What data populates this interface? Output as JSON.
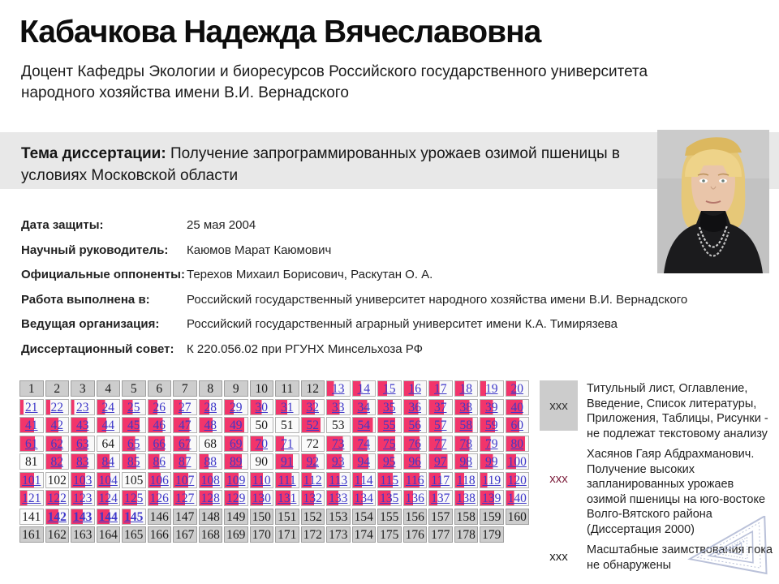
{
  "person": {
    "name": "Кабачкова Надежда Вячеславовна",
    "position": "Доцент Кафедры Экологии и биоресурсов Российского государственного университета народного хозяйства имени В.И. Вернадского"
  },
  "theme": {
    "label": "Тема диссертации:",
    "text": " Получение запрограммированных урожаев озимой пшеницы в условиях Московской области"
  },
  "meta": {
    "rows": [
      {
        "label": "Дата защиты:",
        "value": "25 мая 2004"
      },
      {
        "label": "Научный руководитель:",
        "value": "Каюмов Марат Каюмович"
      },
      {
        "label": "Официальные оппоненты:",
        "value": "Терехов Михаил Борисович, Раскутан О. А."
      },
      {
        "label": "Работа выполнена в:",
        "value": "Российский государственный университет народного хозяйства имени В.И. Вернадского"
      },
      {
        "label": "Ведущая организация:",
        "value": "Российский государственный аграрный университет имени К.А. Тимирязева"
      },
      {
        "label": "Диссертационный совет:",
        "value": "К 220.056.02 при РГУНХ Минсельхоза РФ"
      }
    ]
  },
  "colors": {
    "pink": "#f2356b",
    "gray_cell": "#cdcdcd",
    "link_blue": "#3d37c9",
    "theme_bg": "#e8e8e8"
  },
  "grid": {
    "cells": [
      {
        "n": 1,
        "t": "g"
      },
      {
        "n": 2,
        "t": "g"
      },
      {
        "n": 3,
        "t": "g"
      },
      {
        "n": 4,
        "t": "g"
      },
      {
        "n": 5,
        "t": "g"
      },
      {
        "n": 6,
        "t": "g"
      },
      {
        "n": 7,
        "t": "g"
      },
      {
        "n": 8,
        "t": "g"
      },
      {
        "n": 9,
        "t": "g"
      },
      {
        "n": 10,
        "t": "g"
      },
      {
        "n": 11,
        "t": "g"
      },
      {
        "n": 12,
        "t": "g"
      },
      {
        "n": 13,
        "t": "p",
        "f": 30
      },
      {
        "n": 14,
        "t": "p",
        "f": 35
      },
      {
        "n": 15,
        "t": "p",
        "f": 40
      },
      {
        "n": 16,
        "t": "p",
        "f": 45
      },
      {
        "n": 17,
        "t": "p",
        "f": 45
      },
      {
        "n": 18,
        "t": "p",
        "f": 40
      },
      {
        "n": 19,
        "t": "p",
        "f": 25
      },
      {
        "n": 20,
        "t": "p",
        "f": 45
      },
      {
        "n": 21,
        "t": "p",
        "f": 15
      },
      {
        "n": 22,
        "t": "p",
        "f": 18
      },
      {
        "n": 23,
        "t": "p",
        "f": 12
      },
      {
        "n": 24,
        "t": "p",
        "f": 35
      },
      {
        "n": 25,
        "t": "p",
        "f": 45
      },
      {
        "n": 26,
        "t": "p",
        "f": 40
      },
      {
        "n": 27,
        "t": "p",
        "f": 35
      },
      {
        "n": 28,
        "t": "p",
        "f": 45
      },
      {
        "n": 29,
        "t": "p",
        "f": 40
      },
      {
        "n": 30,
        "t": "p",
        "f": 50
      },
      {
        "n": 31,
        "t": "p",
        "f": 50
      },
      {
        "n": 32,
        "t": "p",
        "f": 60
      },
      {
        "n": 33,
        "t": "p",
        "f": 55
      },
      {
        "n": 34,
        "t": "p",
        "f": 65
      },
      {
        "n": 35,
        "t": "p",
        "f": 65
      },
      {
        "n": 36,
        "t": "p",
        "f": 65
      },
      {
        "n": 37,
        "t": "p",
        "f": 65
      },
      {
        "n": 38,
        "t": "p",
        "f": 65
      },
      {
        "n": 39,
        "t": "p",
        "f": 55
      },
      {
        "n": 40,
        "t": "p",
        "f": 75
      },
      {
        "n": 41,
        "t": "p",
        "f": 60
      },
      {
        "n": 42,
        "t": "p",
        "f": 55
      },
      {
        "n": 43,
        "t": "p",
        "f": 70
      },
      {
        "n": 44,
        "t": "p",
        "f": 40
      },
      {
        "n": 45,
        "t": "p",
        "f": 75
      },
      {
        "n": 46,
        "t": "p",
        "f": 65
      },
      {
        "n": 47,
        "t": "p",
        "f": 70
      },
      {
        "n": 48,
        "t": "p",
        "f": 60
      },
      {
        "n": 49,
        "t": "p",
        "f": 85
      },
      {
        "n": 50,
        "t": "w"
      },
      {
        "n": 51,
        "t": "w"
      },
      {
        "n": 52,
        "t": "p",
        "f": 85
      },
      {
        "n": 53,
        "t": "w"
      },
      {
        "n": 54,
        "t": "p",
        "f": 90
      },
      {
        "n": 55,
        "t": "p",
        "f": 75
      },
      {
        "n": 56,
        "t": "p",
        "f": 70
      },
      {
        "n": 57,
        "t": "p",
        "f": 55
      },
      {
        "n": 58,
        "t": "p",
        "f": 80
      },
      {
        "n": 59,
        "t": "p",
        "f": 65
      },
      {
        "n": 60,
        "t": "p",
        "f": 60
      },
      {
        "n": 61,
        "t": "p",
        "f": 65
      },
      {
        "n": 62,
        "t": "p",
        "f": 70
      },
      {
        "n": 63,
        "t": "p",
        "f": 70
      },
      {
        "n": 64,
        "t": "w"
      },
      {
        "n": 65,
        "t": "p",
        "f": 55
      },
      {
        "n": 66,
        "t": "p",
        "f": 75
      },
      {
        "n": 67,
        "t": "p",
        "f": 70
      },
      {
        "n": 68,
        "t": "w"
      },
      {
        "n": 69,
        "t": "p",
        "f": 80
      },
      {
        "n": 70,
        "t": "p",
        "f": 55
      },
      {
        "n": 71,
        "t": "p",
        "f": 35
      },
      {
        "n": 72,
        "t": "w"
      },
      {
        "n": 73,
        "t": "p",
        "f": 70
      },
      {
        "n": 74,
        "t": "p",
        "f": 65
      },
      {
        "n": 75,
        "t": "p",
        "f": 75
      },
      {
        "n": 76,
        "t": "p",
        "f": 70
      },
      {
        "n": 77,
        "t": "p",
        "f": 55
      },
      {
        "n": 78,
        "t": "p",
        "f": 65
      },
      {
        "n": 79,
        "t": "p",
        "f": 45
      },
      {
        "n": 80,
        "t": "p",
        "f": 85
      },
      {
        "n": 81,
        "t": "w"
      },
      {
        "n": 82,
        "t": "p",
        "f": 70
      },
      {
        "n": 83,
        "t": "p",
        "f": 70
      },
      {
        "n": 84,
        "t": "p",
        "f": 55
      },
      {
        "n": 85,
        "t": "p",
        "f": 60
      },
      {
        "n": 86,
        "t": "p",
        "f": 50
      },
      {
        "n": 87,
        "t": "p",
        "f": 55
      },
      {
        "n": 88,
        "t": "p",
        "f": 40
      },
      {
        "n": 89,
        "t": "p",
        "f": 75
      },
      {
        "n": 90,
        "t": "w"
      },
      {
        "n": 91,
        "t": "p",
        "f": 75
      },
      {
        "n": 92,
        "t": "p",
        "f": 65
      },
      {
        "n": 93,
        "t": "p",
        "f": 65
      },
      {
        "n": 94,
        "t": "p",
        "f": 70
      },
      {
        "n": 95,
        "t": "p",
        "f": 70
      },
      {
        "n": 96,
        "t": "p",
        "f": 75
      },
      {
        "n": 97,
        "t": "p",
        "f": 80
      },
      {
        "n": 98,
        "t": "p",
        "f": 60
      },
      {
        "n": 99,
        "t": "p",
        "f": 55
      },
      {
        "n": 100,
        "t": "p",
        "f": 45
      },
      {
        "n": 101,
        "t": "p",
        "f": 60
      },
      {
        "n": 102,
        "t": "w"
      },
      {
        "n": 103,
        "t": "p",
        "f": 60
      },
      {
        "n": 104,
        "t": "p",
        "f": 60
      },
      {
        "n": 105,
        "t": "w"
      },
      {
        "n": 106,
        "t": "p",
        "f": 55
      },
      {
        "n": 107,
        "t": "p",
        "f": 65
      },
      {
        "n": 108,
        "t": "p",
        "f": 60
      },
      {
        "n": 109,
        "t": "p",
        "f": 60
      },
      {
        "n": 110,
        "t": "p",
        "f": 55
      },
      {
        "n": 111,
        "t": "p",
        "f": 70
      },
      {
        "n": 112,
        "t": "p",
        "f": 45
      },
      {
        "n": 113,
        "t": "p",
        "f": 55
      },
      {
        "n": 114,
        "t": "p",
        "f": 40
      },
      {
        "n": 115,
        "t": "p",
        "f": 65
      },
      {
        "n": 116,
        "t": "p",
        "f": 70
      },
      {
        "n": 117,
        "t": "p",
        "f": 50
      },
      {
        "n": 118,
        "t": "p",
        "f": 40
      },
      {
        "n": 119,
        "t": "p",
        "f": 30
      },
      {
        "n": 120,
        "t": "p",
        "f": 45
      },
      {
        "n": 121,
        "t": "p",
        "f": 30
      },
      {
        "n": 122,
        "t": "p",
        "f": 60
      },
      {
        "n": 123,
        "t": "p",
        "f": 50
      },
      {
        "n": 124,
        "t": "p",
        "f": 50
      },
      {
        "n": 125,
        "t": "p",
        "f": 65
      },
      {
        "n": 126,
        "t": "p",
        "f": 45
      },
      {
        "n": 127,
        "t": "p",
        "f": 50
      },
      {
        "n": 128,
        "t": "p",
        "f": 60
      },
      {
        "n": 129,
        "t": "p",
        "f": 60
      },
      {
        "n": 130,
        "t": "p",
        "f": 55
      },
      {
        "n": 131,
        "t": "p",
        "f": 65
      },
      {
        "n": 132,
        "t": "p",
        "f": 55
      },
      {
        "n": 133,
        "t": "p",
        "f": 50
      },
      {
        "n": 134,
        "t": "p",
        "f": 45
      },
      {
        "n": 135,
        "t": "p",
        "f": 55
      },
      {
        "n": 136,
        "t": "p",
        "f": 40
      },
      {
        "n": 137,
        "t": "p",
        "f": 35
      },
      {
        "n": 138,
        "t": "p",
        "f": 40
      },
      {
        "n": 139,
        "t": "p",
        "f": 60
      },
      {
        "n": 140,
        "t": "p",
        "f": 35
      },
      {
        "n": 141,
        "t": "w"
      },
      {
        "n": 142,
        "t": "p",
        "f": 55,
        "b": 1
      },
      {
        "n": 143,
        "t": "p",
        "f": 50,
        "b": 1
      },
      {
        "n": 144,
        "t": "p",
        "f": 55,
        "b": 1
      },
      {
        "n": 145,
        "t": "p",
        "f": 35,
        "b": 1
      },
      {
        "n": 146,
        "t": "g"
      },
      {
        "n": 147,
        "t": "g"
      },
      {
        "n": 148,
        "t": "g"
      },
      {
        "n": 149,
        "t": "g"
      },
      {
        "n": 150,
        "t": "g"
      },
      {
        "n": 151,
        "t": "g"
      },
      {
        "n": 152,
        "t": "g"
      },
      {
        "n": 153,
        "t": "g"
      },
      {
        "n": 154,
        "t": "g"
      },
      {
        "n": 155,
        "t": "g"
      },
      {
        "n": 156,
        "t": "g"
      },
      {
        "n": 157,
        "t": "g"
      },
      {
        "n": 158,
        "t": "g"
      },
      {
        "n": 159,
        "t": "g"
      },
      {
        "n": 160,
        "t": "g"
      },
      {
        "n": 161,
        "t": "g"
      },
      {
        "n": 162,
        "t": "g"
      },
      {
        "n": 163,
        "t": "g"
      },
      {
        "n": 164,
        "t": "g"
      },
      {
        "n": 165,
        "t": "g"
      },
      {
        "n": 166,
        "t": "g"
      },
      {
        "n": 167,
        "t": "g"
      },
      {
        "n": 168,
        "t": "g"
      },
      {
        "n": 169,
        "t": "g"
      },
      {
        "n": 170,
        "t": "g"
      },
      {
        "n": 171,
        "t": "g"
      },
      {
        "n": 172,
        "t": "g"
      },
      {
        "n": 173,
        "t": "g"
      },
      {
        "n": 174,
        "t": "g"
      },
      {
        "n": 175,
        "t": "g"
      },
      {
        "n": 176,
        "t": "g"
      },
      {
        "n": 177,
        "t": "g"
      },
      {
        "n": 178,
        "t": "g"
      },
      {
        "n": 179,
        "t": "g"
      }
    ]
  },
  "legend": {
    "rows": [
      {
        "mark": "ххх",
        "text": "Титульный лист, Оглавление, Введение, Список литературы, Приложения, Таблицы, Рисунки - не подлежат текстовому анализу"
      },
      {
        "mark": "ххх",
        "text": "Хасянов Гаяр Абдрахманович. Получение высоких запланированных урожаев озимой пшеницы на юго-востоке Волго-Вятского района (Диссертация 2000)"
      },
      {
        "mark": "ххх",
        "text": "Масштабные заимствования пока не обнаружены"
      }
    ]
  }
}
